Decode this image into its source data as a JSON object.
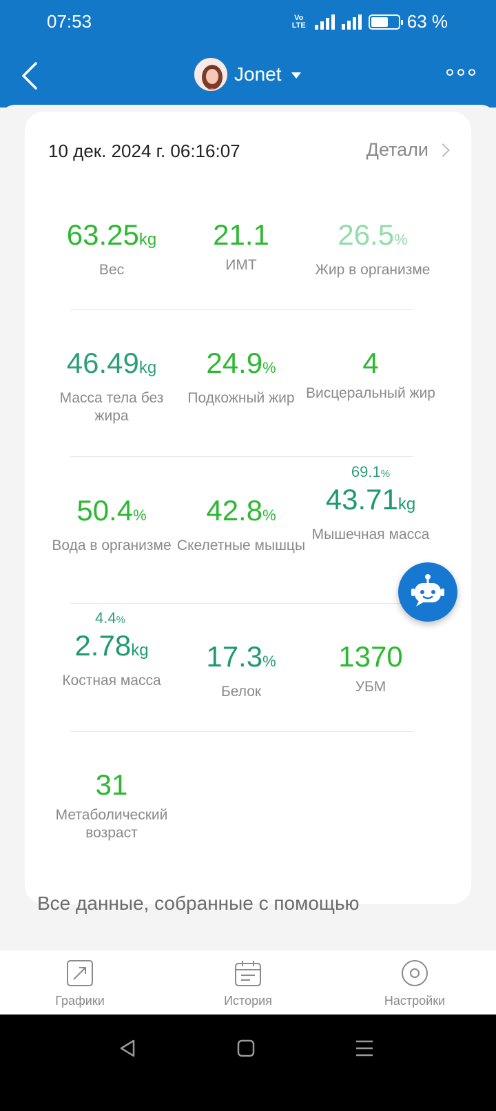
{
  "status_bar": {
    "time": "07:53",
    "network": "Vo LTE",
    "battery": "63 %",
    "battery_level": 0.63
  },
  "header": {
    "user_name": "Jonet",
    "icons": [
      "back-icon",
      "avatar",
      "caret-down-icon",
      "more-icon"
    ]
  },
  "card": {
    "datetime": "10 дек. 2024 г. 06:16:07",
    "details_label": "Детали",
    "metrics": [
      {
        "value": "63.25",
        "unit": "kg",
        "label": "Вес",
        "color": "#2db832"
      },
      {
        "value": "21.1",
        "unit": "",
        "label": "ИМТ",
        "color": "#2db832"
      },
      {
        "value": "26.5",
        "unit": "%",
        "label": "Жир в организме",
        "color": "#92dca8"
      },
      {
        "value": "46.49",
        "unit": "kg",
        "label": "Масса тела без жира",
        "color": "#2e9e7a"
      },
      {
        "value": "24.9",
        "unit": "%",
        "label": "Подкожный жир",
        "color": "#2db832"
      },
      {
        "value": "4",
        "unit": "",
        "label": "Висцеральный жир",
        "color": "#2db832"
      },
      {
        "value": "50.4",
        "unit": "%",
        "label": "Вода в организме",
        "color": "#2db832"
      },
      {
        "value": "42.8",
        "unit": "%",
        "label": "Скелетные мышцы",
        "color": "#2db832"
      },
      {
        "value": "43.71",
        "unit": "kg",
        "label": "Мышечная масса",
        "secondary": "69.1",
        "secondary_unit": "%",
        "color": "#1f9a70"
      },
      {
        "value": "2.78",
        "unit": "kg",
        "label": "Костная масса",
        "secondary": "4.4",
        "secondary_unit": "%",
        "color": "#1f9a70"
      },
      {
        "value": "17.3",
        "unit": "%",
        "label": "Белок",
        "color": "#1f9a70"
      },
      {
        "value": "1370",
        "unit": "",
        "label": "УБМ",
        "color": "#2db832"
      },
      {
        "value": "31",
        "unit": "",
        "label": "Метаболический возраст",
        "color": "#2db832"
      }
    ]
  },
  "footer_text": "Все данные, собранные с помощью",
  "bottom_nav": [
    {
      "label": "Графики",
      "icon": "chart-trend-icon"
    },
    {
      "label": "История",
      "icon": "calendar-icon"
    },
    {
      "label": "Настройки",
      "icon": "settings-circle-icon"
    }
  ],
  "system_nav": [
    "back-triangle-icon",
    "home-square-icon",
    "recents-lines-icon"
  ],
  "colors": {
    "primary": "#1478c8",
    "green": "#2db832",
    "light_green": "#92dca8",
    "dark_green": "#1f9a70"
  }
}
